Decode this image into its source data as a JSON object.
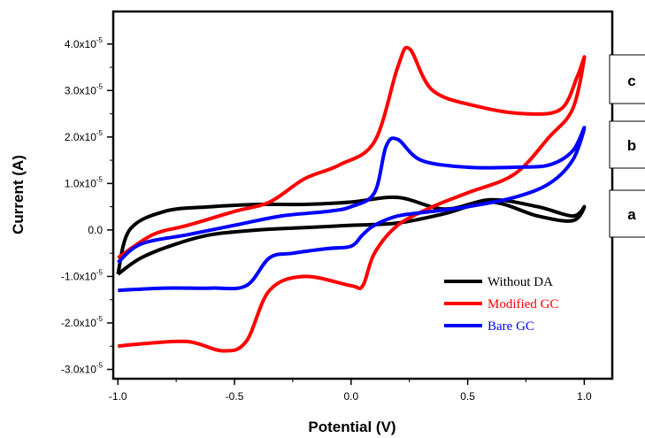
{
  "chart_data": {
    "type": "line",
    "xlabel": "Potential (V)",
    "ylabel": "Current (A)",
    "xlim": [
      -1.02,
      1.12
    ],
    "ylim": [
      -3.2e-05,
      4.7e-05
    ],
    "x_ticks": [
      {
        "value": -1.0,
        "label": "-1.0"
      },
      {
        "value": -0.5,
        "label": "-0.5"
      },
      {
        "value": 0.0,
        "label": "0.0"
      },
      {
        "value": 0.5,
        "label": "0.5"
      },
      {
        "value": 1.0,
        "label": "1.0"
      }
    ],
    "y_ticks": [
      {
        "value": 4e-05,
        "base": "4.0x10",
        "exp": "-5"
      },
      {
        "value": 3e-05,
        "base": "3.0x10",
        "exp": "-5"
      },
      {
        "value": 2e-05,
        "base": "2.0x10",
        "exp": "-5"
      },
      {
        "value": 1e-05,
        "base": "1.0x10",
        "exp": "-5"
      },
      {
        "value": 0.0,
        "base": "0.0",
        "exp": ""
      },
      {
        "value": -1e-05,
        "base": "-1.0x10",
        "exp": "-5"
      },
      {
        "value": -2e-05,
        "base": "-2.0x10",
        "exp": "-5"
      },
      {
        "value": -3e-05,
        "base": "-3.0x10",
        "exp": "-5"
      }
    ],
    "legend": {
      "placement": "bottom-right",
      "entries": [
        {
          "name": "Without DA",
          "color": "#000000"
        },
        {
          "name": "Modified GC",
          "color": "#ff0000"
        },
        {
          "name": "Bare GC",
          "color": "#0000ff"
        }
      ]
    },
    "annotations": [
      "c",
      "b",
      "a"
    ],
    "series": [
      {
        "name": "Without DA",
        "color": "#000000",
        "x": [
          -1.0,
          -0.9,
          -0.75,
          -0.6,
          -0.4,
          -0.2,
          0.0,
          0.2,
          0.4,
          0.6,
          0.8,
          0.95,
          1.0,
          0.95,
          0.8,
          0.6,
          0.4,
          0.2,
          0.0,
          -0.2,
          -0.4,
          -0.6,
          -0.8,
          -0.95,
          -1.0
        ],
        "y": [
          -9.5e-06,
          -6e-06,
          -3e-06,
          -1e-06,
          0.0,
          5e-07,
          1e-06,
          1.5e-06,
          3.5e-06,
          6e-06,
          3e-06,
          2e-06,
          5e-06,
          3e-06,
          5e-06,
          6.5e-06,
          4.5e-06,
          7e-06,
          6e-06,
          5.5e-06,
          5.5e-06,
          5e-06,
          4e-06,
          0.0,
          -9.5e-06
        ]
      },
      {
        "name": "Modified GC",
        "color": "#ff0000",
        "x": [
          -1.0,
          -0.9,
          -0.7,
          -0.55,
          -0.45,
          -0.35,
          -0.2,
          0.0,
          0.05,
          0.1,
          0.2,
          0.35,
          0.5,
          0.7,
          0.85,
          0.95,
          1.0,
          0.97,
          0.9,
          0.75,
          0.55,
          0.35,
          0.25,
          0.2,
          0.1,
          -0.05,
          -0.2,
          -0.35,
          -0.5,
          -0.7,
          -0.85,
          -1.0
        ],
        "y": [
          -2.5e-05,
          -2.45e-05,
          -2.4e-05,
          -2.6e-05,
          -2.4e-05,
          -1.3e-05,
          -1e-05,
          -1.2e-05,
          -1.2e-05,
          -5e-06,
          1e-06,
          5e-06,
          8e-06,
          1.2e-05,
          2e-05,
          2.6e-05,
          3.7e-05,
          3.3e-05,
          2.6e-05,
          2.5e-05,
          2.65e-05,
          3e-05,
          3.9e-05,
          3.5e-05,
          1.9e-05,
          1.4e-05,
          1.1e-05,
          6e-06,
          4e-06,
          1e-06,
          -1e-06,
          -6e-06
        ]
      },
      {
        "name": "Bare GC",
        "color": "#0000ff",
        "x": [
          -1.0,
          -0.8,
          -0.6,
          -0.45,
          -0.35,
          -0.25,
          -0.1,
          0.0,
          0.05,
          0.1,
          0.2,
          0.35,
          0.5,
          0.7,
          0.85,
          0.95,
          1.0,
          0.95,
          0.85,
          0.7,
          0.5,
          0.3,
          0.2,
          0.15,
          0.1,
          0.0,
          -0.1,
          -0.3,
          -0.5,
          -0.7,
          -0.9,
          -1.0
        ],
        "y": [
          -1.3e-05,
          -1.25e-05,
          -1.25e-05,
          -1.2e-05,
          -6e-06,
          -5e-06,
          -4e-06,
          -3.5e-06,
          -1e-06,
          1e-06,
          3e-06,
          4e-06,
          5e-06,
          7e-06,
          1e-05,
          1.5e-05,
          2.2e-05,
          1.7e-05,
          1.4e-05,
          1.35e-05,
          1.35e-05,
          1.5e-05,
          1.95e-05,
          1.8e-05,
          8e-06,
          5e-06,
          4e-06,
          3e-06,
          1e-06,
          -1e-06,
          -3e-06,
          -7e-06
        ]
      }
    ]
  }
}
